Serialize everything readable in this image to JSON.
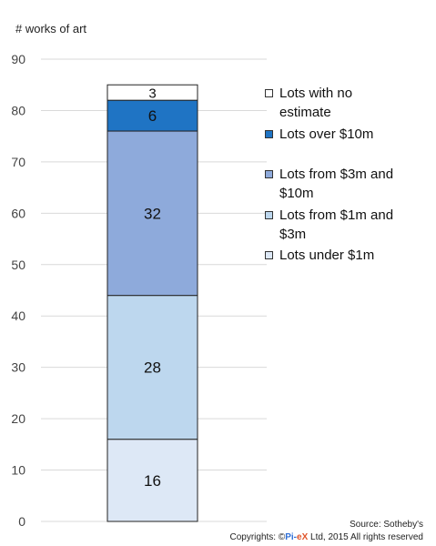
{
  "chart_data": {
    "type": "bar",
    "stacked": true,
    "categories": [
      ""
    ],
    "ylabel": "# works of art",
    "ylim": [
      0,
      90
    ],
    "yticks": [
      0,
      10,
      20,
      30,
      40,
      50,
      60,
      70,
      80,
      90
    ],
    "grid": true,
    "legend_position": "right",
    "series": [
      {
        "name": "Lots under $1m",
        "values": [
          16
        ],
        "color": "#dde8f6"
      },
      {
        "name": "Lots from $1m and $3m",
        "values": [
          28
        ],
        "color": "#bdd7ee"
      },
      {
        "name": "Lots from $3m and $10m",
        "values": [
          32
        ],
        "color": "#8eaadb"
      },
      {
        "name": "Lots over $10m",
        "values": [
          6
        ],
        "color": "#1f74c4"
      },
      {
        "name": "Lots with no estimate",
        "values": [
          3
        ],
        "color": "#ffffff"
      }
    ]
  },
  "legend": [
    {
      "line1": "Lots with no",
      "line2": "estimate",
      "color": "#ffffff"
    },
    {
      "line1": "Lots over $10m",
      "line2": "",
      "color": "#1f74c4"
    },
    {
      "line1": "Lots from $3m and",
      "line2": "$10m",
      "color": "#8eaadb"
    },
    {
      "line1": "Lots from $1m and",
      "line2": "$3m",
      "color": "#bdd7ee"
    },
    {
      "line1": "Lots under $1m",
      "line2": "",
      "color": "#dde8f6"
    }
  ],
  "footer": {
    "source": "Source: Sotheby's",
    "copyright_prefix": "Copyrights: ©",
    "brand_a": "Pi-",
    "brand_b": "eX",
    "copyright_suffix": " Ltd, 2015 All rights reserved"
  }
}
